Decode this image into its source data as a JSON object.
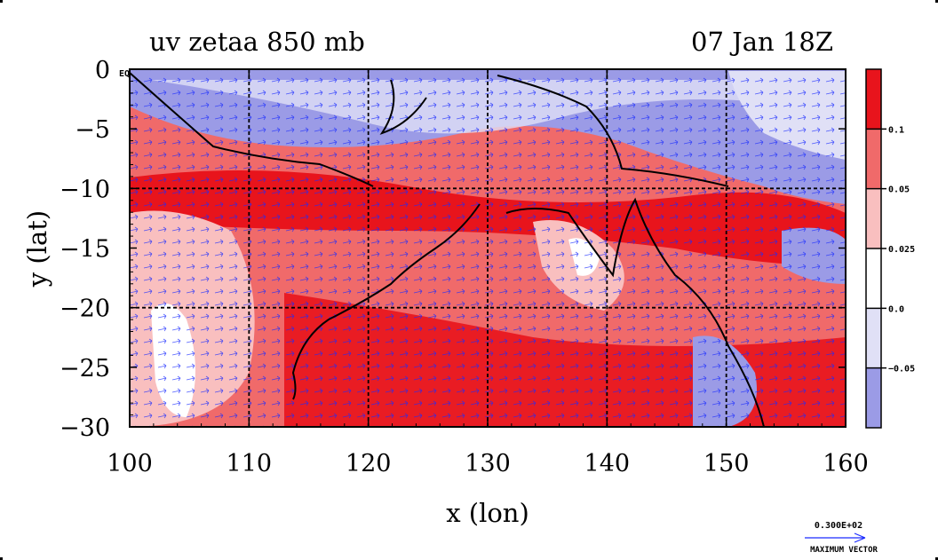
{
  "chart_data": {
    "type": "heatmap",
    "title_left": "uv zetaa 850 mb",
    "title_right": "07 Jan 18Z",
    "xlabel": "x (lon)",
    "ylabel": "y (lat)",
    "xlim": [
      100,
      160
    ],
    "ylim": [
      -30,
      0
    ],
    "x_ticks": [
      100,
      110,
      120,
      130,
      140,
      150,
      160
    ],
    "x_tick_labels": [
      "100",
      "110",
      "120",
      "130",
      "140",
      "150",
      "160"
    ],
    "y_ticks": [
      0,
      -5,
      -10,
      -15,
      -20,
      -25,
      -30
    ],
    "y_tick_labels": [
      "0",
      "−5",
      "−10",
      "−15",
      "−20",
      "−25",
      "−30"
    ],
    "y_top_suffix": "EQ",
    "gridlines_x": [
      110,
      120,
      130,
      140,
      150
    ],
    "gridlines_y": [
      -10,
      -20
    ],
    "colorbar": {
      "levels": [
        "0.1",
        "0.05",
        "0.025",
        "0.0",
        "−0.05"
      ],
      "colors": [
        "#e8141c",
        "#f06a6a",
        "#f9bfbf",
        "#ffffff",
        "#e0e0f6",
        "#9b9be6"
      ]
    },
    "vector_legend": {
      "magnitude": "0.300E+02",
      "label": "MAXIMUM VECTOR"
    }
  }
}
